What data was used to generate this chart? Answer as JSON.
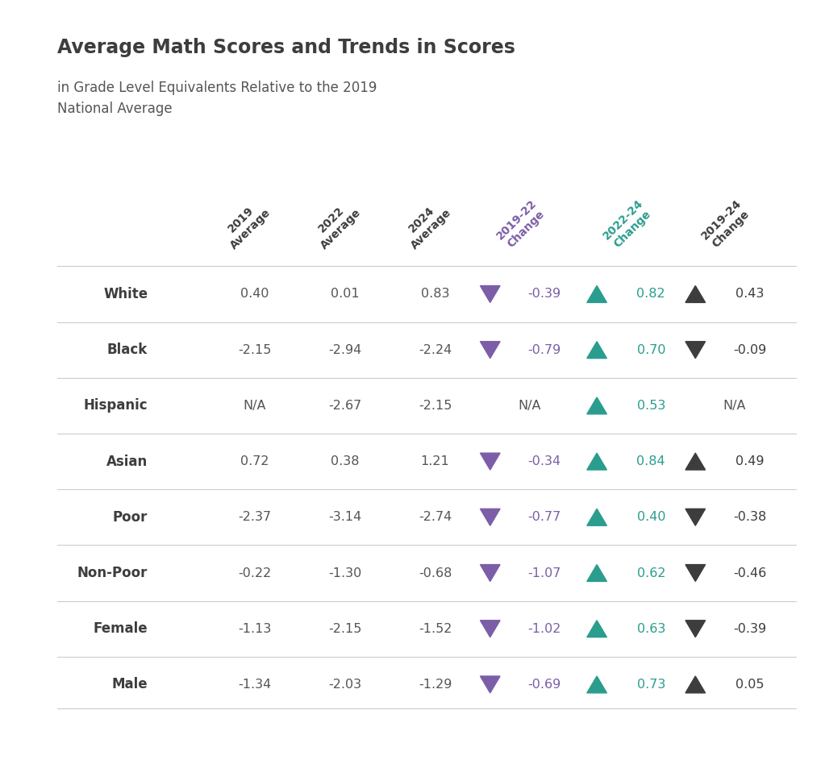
{
  "title": "Average Math Scores and Trends in Scores",
  "subtitle": "in Grade Level Equivalents Relative to the 2019\nNational Average",
  "background_color": "#ffffff",
  "col_headers": [
    "2019\nAverage",
    "2022\nAverage",
    "2024\nAverage",
    "2019-22\nChange",
    "2022-24\nChange",
    "2019-24\nChange"
  ],
  "col_colors": [
    "#3d3d3d",
    "#3d3d3d",
    "#3d3d3d",
    "#7b5ea7",
    "#2a9d8f",
    "#3d3d3d"
  ],
  "rows": [
    {
      "label": "White",
      "avg2019": "0.40",
      "avg2022": "0.01",
      "avg2024": "0.83",
      "ch1922": -0.39,
      "ch2224": 0.82,
      "ch1924": 0.43
    },
    {
      "label": "Black",
      "avg2019": "-2.15",
      "avg2022": "-2.94",
      "avg2024": "-2.24",
      "ch1922": -0.79,
      "ch2224": 0.7,
      "ch1924": -0.09
    },
    {
      "label": "Hispanic",
      "avg2019": "N/A",
      "avg2022": "-2.67",
      "avg2024": "-2.15",
      "ch1922": null,
      "ch2224": 0.53,
      "ch1924": null
    },
    {
      "label": "Asian",
      "avg2019": "0.72",
      "avg2022": "0.38",
      "avg2024": "1.21",
      "ch1922": -0.34,
      "ch2224": 0.84,
      "ch1924": 0.49
    },
    {
      "label": "Poor",
      "avg2019": "-2.37",
      "avg2022": "-3.14",
      "avg2024": "-2.74",
      "ch1922": -0.77,
      "ch2224": 0.4,
      "ch1924": -0.38
    },
    {
      "label": "Non-Poor",
      "avg2019": "-0.22",
      "avg2022": "-1.30",
      "avg2024": "-0.68",
      "ch1922": -1.07,
      "ch2224": 0.62,
      "ch1924": -0.46
    },
    {
      "label": "Female",
      "avg2019": "-1.13",
      "avg2022": "-2.15",
      "avg2024": "-1.52",
      "ch1922": -1.02,
      "ch2224": 0.63,
      "ch1924": -0.39
    },
    {
      "label": "Male",
      "avg2019": "-1.34",
      "avg2022": "-2.03",
      "avg2024": "-1.29",
      "ch1922": -0.69,
      "ch2224": 0.73,
      "ch1924": 0.05
    }
  ],
  "purple": "#7b5ea7",
  "teal": "#2a9d8f",
  "dark": "#3d3d3d",
  "line_color": "#cccccc"
}
